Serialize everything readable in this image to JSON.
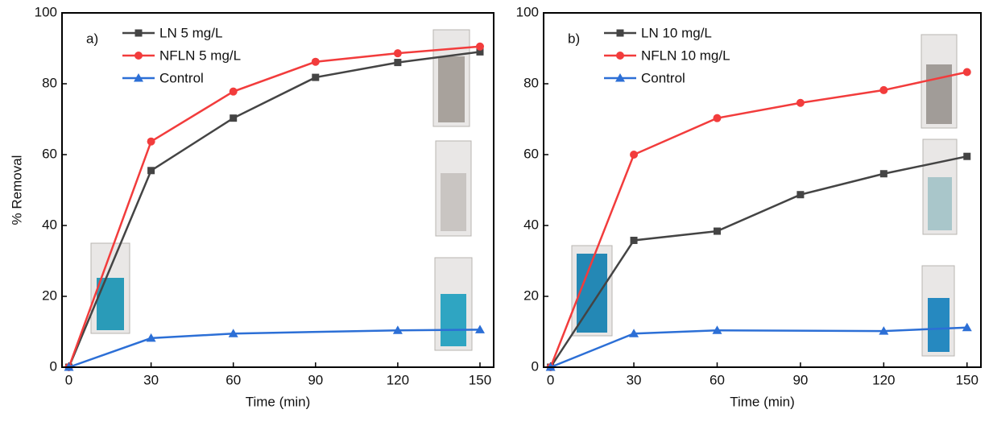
{
  "chart_data": [
    {
      "type": "line",
      "panel_label": "a)",
      "x_label": "Time (min)",
      "y_label": "% Removal",
      "xlim": [
        -2.5,
        155
      ],
      "ylim": [
        0,
        100
      ],
      "xticks": [
        0,
        30,
        60,
        90,
        120,
        150
      ],
      "yticks": [
        0,
        20,
        40,
        60,
        80,
        100
      ],
      "legend": "upper left",
      "series": [
        {
          "name": "LN 5 mg/L",
          "color": "#444444",
          "marker": "square",
          "x": [
            0,
            30,
            60,
            90,
            120,
            150
          ],
          "values": [
            0,
            55.5,
            70.3,
            81.8,
            86,
            89
          ]
        },
        {
          "name": "NFLN 5 mg/L",
          "color": "#f23c3c",
          "marker": "circle",
          "x": [
            0,
            30,
            60,
            90,
            120,
            150
          ],
          "values": [
            0,
            63.7,
            77.8,
            86.2,
            88.6,
            90.5
          ]
        },
        {
          "name": "Control",
          "color": "#2c6fd6",
          "marker": "triangle",
          "x": [
            0,
            30,
            60,
            120,
            150
          ],
          "values": [
            0,
            8.2,
            9.5,
            10.4,
            10.6
          ]
        }
      ]
    },
    {
      "type": "line",
      "panel_label": "b)",
      "x_label": "Time (min)",
      "xlim": [
        -2.5,
        155
      ],
      "ylim": [
        0,
        100
      ],
      "xticks": [
        0,
        30,
        60,
        90,
        120,
        150
      ],
      "yticks": [
        0,
        20,
        40,
        60,
        80,
        100
      ],
      "legend": "upper left",
      "series": [
        {
          "name": "LN 10 mg/L",
          "color": "#444444",
          "marker": "square",
          "x": [
            0,
            30,
            60,
            90,
            120,
            150
          ],
          "values": [
            0,
            35.8,
            38.4,
            48.7,
            54.6,
            59.5
          ]
        },
        {
          "name": "NFLN 10 mg/L",
          "color": "#f23c3c",
          "marker": "circle",
          "x": [
            0,
            30,
            60,
            90,
            120,
            150
          ],
          "values": [
            0,
            60,
            70.3,
            74.6,
            78.2,
            83.3
          ]
        },
        {
          "name": "Control",
          "color": "#2c6fd6",
          "marker": "triangle",
          "x": [
            0,
            30,
            60,
            120,
            150
          ],
          "values": [
            0,
            9.5,
            10.4,
            10.2,
            11.2
          ]
        }
      ]
    }
  ]
}
